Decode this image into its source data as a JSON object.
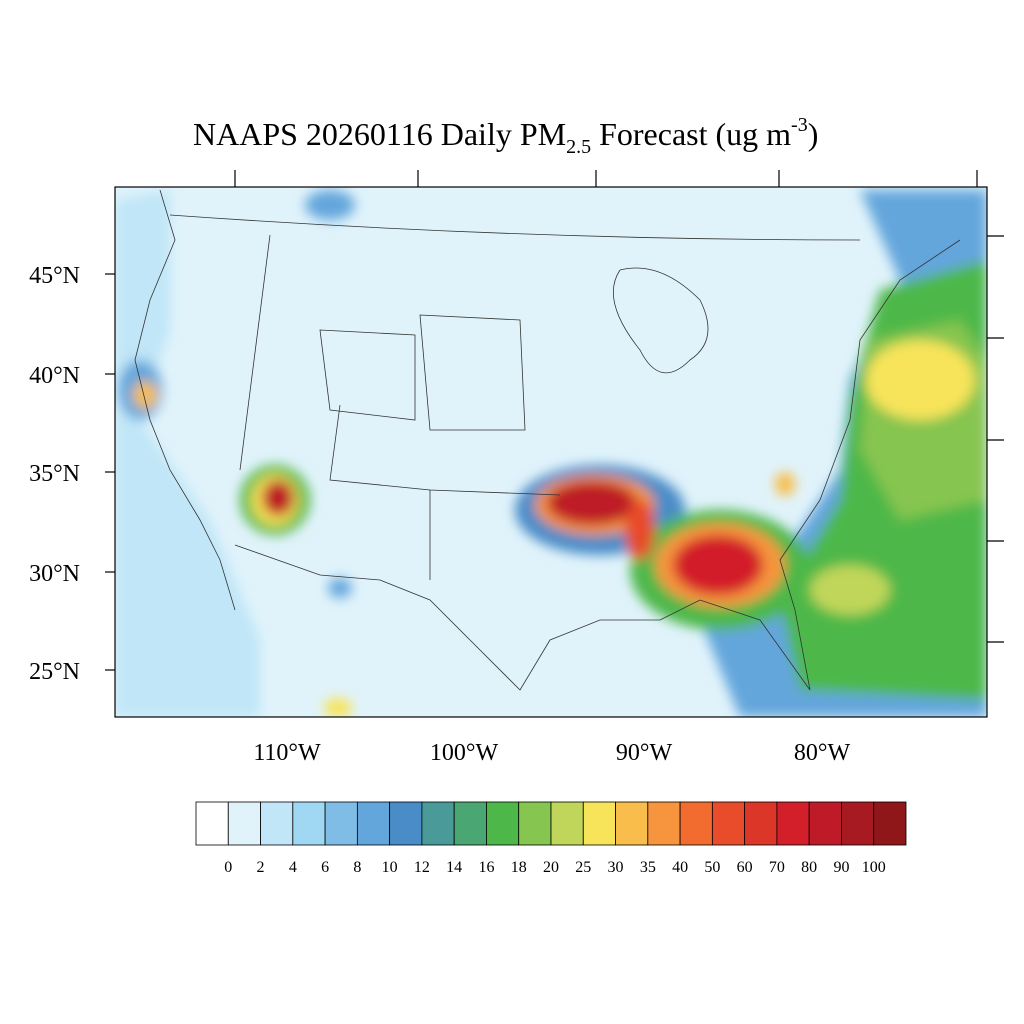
{
  "title": {
    "main": "NAAPS 20260116 Daily PM",
    "subscript": "2.5",
    "middle": " Forecast (ug m",
    "superscript": "-3",
    "end": ")"
  },
  "lat_labels": [
    "45°N",
    "40°N",
    "35°N",
    "30°N",
    "25°N"
  ],
  "lon_labels": [
    "110°W",
    "100°W",
    "90°W",
    "80°W"
  ],
  "colorbar": {
    "labels": [
      0,
      2,
      4,
      6,
      8,
      10,
      12,
      14,
      16,
      18,
      20,
      25,
      30,
      35,
      40,
      50,
      60,
      70,
      80,
      90,
      100
    ],
    "colors": [
      "#ffffff",
      "#e0f3fb",
      "#c0e6f7",
      "#a0d7f3",
      "#80bde6",
      "#63a6dc",
      "#4a8cc8",
      "#4a9a9a",
      "#4aa672",
      "#4db849",
      "#86c550",
      "#c0d65a",
      "#f7e45a",
      "#f8bd4a",
      "#f7943e",
      "#f26b2f",
      "#e84c2a",
      "#dc3628",
      "#d31f2a",
      "#be1a27",
      "#a71a22",
      "#8f1619"
    ]
  }
}
